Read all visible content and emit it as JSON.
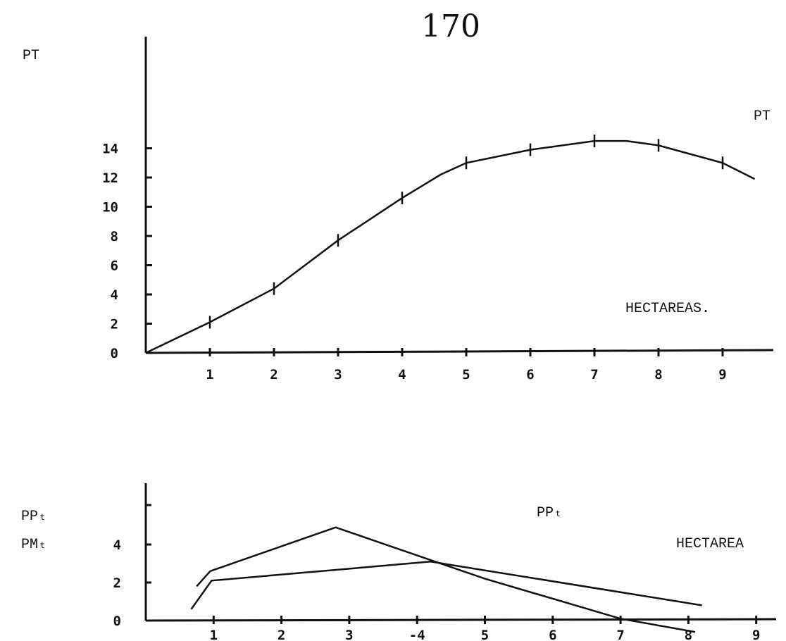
{
  "page": {
    "number": "170"
  },
  "chart_data": [
    {
      "type": "line",
      "ylabel": "PT",
      "xlabel": "HECTAREAS.",
      "x_ticks": [
        "1",
        "2",
        "3",
        "4",
        "5",
        "6",
        "7",
        "8",
        "9"
      ],
      "y_ticks": [
        "0",
        "2",
        "4",
        "6",
        "8",
        "10",
        "12",
        "14"
      ],
      "xlim": [
        0,
        9.5
      ],
      "ylim": [
        0,
        15
      ],
      "series": [
        {
          "name": "PT",
          "x": [
            0,
            1,
            2,
            3,
            4,
            4.6,
            5,
            6,
            7,
            7.5,
            8,
            9,
            9.5
          ],
          "y": [
            0,
            2.1,
            4.4,
            7.7,
            10.6,
            12.2,
            13.0,
            13.9,
            14.5,
            14.5,
            14.2,
            13.0,
            11.9
          ]
        }
      ]
    },
    {
      "type": "line",
      "ylabel_lines": [
        "PPₜ",
        "PMₜ"
      ],
      "xlabel": "HECTAREA",
      "x_ticks": [
        "1",
        "2",
        "3",
        "-4",
        "5",
        "6",
        "7",
        "8",
        "9"
      ],
      "y_ticks": [
        "0",
        "2",
        "4"
      ],
      "xlim": [
        0,
        9.5
      ],
      "ylim": [
        0,
        6.5
      ],
      "series": [
        {
          "name": "PPₜ",
          "x": [
            0.67,
            0.97,
            4.2,
            8.2
          ],
          "y": [
            0.6,
            2.1,
            3.1,
            0.8
          ]
        },
        {
          "x": [
            0.75,
            0.95,
            2.8,
            5.0,
            7.0,
            8.1
          ],
          "y": [
            1.8,
            2.6,
            4.9,
            2.2,
            0.1,
            -0.6
          ]
        }
      ]
    }
  ]
}
